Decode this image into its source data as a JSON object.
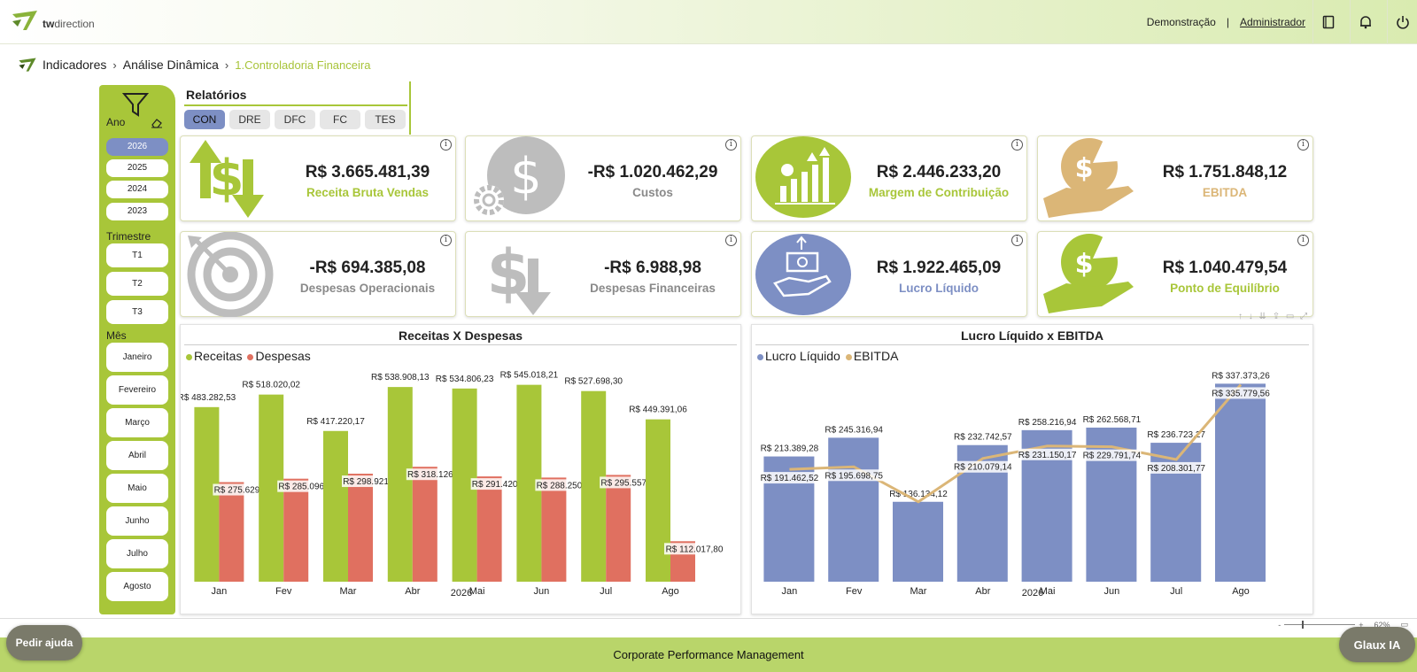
{
  "brand": {
    "logo_text_bold": "tw",
    "logo_text": "direction"
  },
  "header": {
    "user_mode": "Demonstração",
    "separator": "|",
    "user_role": "Administrador"
  },
  "breadcrumb": {
    "items": [
      "Indicadores",
      "Análise Dinâmica"
    ],
    "current": "1.Controladoria Financeira"
  },
  "filters": {
    "year_label": "Ano",
    "years": [
      "2026",
      "2025",
      "2024",
      "2023"
    ],
    "selected_year": "2026",
    "quarter_label": "Trimestre",
    "quarters": [
      "T1",
      "T2",
      "T3"
    ],
    "month_label": "Mês",
    "months": [
      "Janeiro",
      "Fevereiro",
      "Março",
      "Abril",
      "Maio",
      "Junho",
      "Julho",
      "Agosto"
    ]
  },
  "reports": {
    "title": "Relatórios",
    "tabs": [
      "CON",
      "DRE",
      "DFC",
      "FC",
      "TES"
    ],
    "selected": "CON"
  },
  "kpis": [
    {
      "value": "R$ 3.665.481,39",
      "label": "Receita Bruta Vendas",
      "color": "#a8c639",
      "icon": "dollar-arrows-icon"
    },
    {
      "value": "-R$ 1.020.462,29",
      "label": "Custos",
      "color": "#8a8a8a",
      "icon": "dollar-gear-icon"
    },
    {
      "value": "R$ 2.446.233,20",
      "label": "Margem de Contribuição",
      "color": "#a8c639",
      "icon": "growth-chart-icon"
    },
    {
      "value": "R$ 1.751.848,12",
      "label": "EBITDA",
      "color": "#dbb677",
      "icon": "hand-pie-icon"
    },
    {
      "value": "-R$ 694.385,08",
      "label": "Despesas Operacionais",
      "color": "#8a8a8a",
      "icon": "target-icon"
    },
    {
      "value": "-R$ 6.988,98",
      "label": "Despesas Financeiras",
      "color": "#8a8a8a",
      "icon": "dollar-down-icon"
    },
    {
      "value": "R$ 1.922.465,09",
      "label": "Lucro Líquido",
      "color": "#7d8fc4",
      "icon": "hand-money-icon"
    },
    {
      "value": "R$ 1.040.479,54",
      "label": "Ponto de Equilíbrio",
      "color": "#a8c639",
      "icon": "hand-pie-icon"
    }
  ],
  "chart_data": [
    {
      "type": "bar",
      "title": "Receitas X Despesas",
      "categories": [
        "Jan",
        "Fev",
        "Mar",
        "Abr",
        "Mai",
        "Jun",
        "Jul",
        "Ago"
      ],
      "xlabel": "2026",
      "series": [
        {
          "name": "Receitas",
          "color": "#a8c639",
          "values": [
            483282.53,
            518020.02,
            417220.17,
            538908.13,
            534806.23,
            545018.21,
            527698.3,
            449391.06
          ],
          "labels": [
            "R$ 483.282,53",
            "R$ 518.020,02",
            "R$ 417.220,17",
            "R$ 538.908,13",
            "R$ 534.806,23",
            "R$ 545.018,21",
            "R$ 527.698,30",
            "R$ 449.391,06"
          ]
        },
        {
          "name": "Despesas",
          "color": "#e07060",
          "values": [
            275629.46,
            285096.79,
            298921.49,
            318126.48,
            291420.69,
            288250.63,
            295557.34,
            112017.8
          ],
          "labels": [
            "R$ 275.629,46",
            "R$ 285.096,79",
            "R$ 298.921,49",
            "R$ 318.126,48",
            "R$ 291.420,69",
            "R$ 288.250,63",
            "R$ 295.557,34",
            "R$ 112.017,80"
          ]
        }
      ],
      "ylim": [
        0,
        600000
      ]
    },
    {
      "type": "bar",
      "title": "Lucro Líquido x EBITDA",
      "categories": [
        "Jan",
        "Fev",
        "Mar",
        "Abr",
        "Mai",
        "Jun",
        "Jul",
        "Ago"
      ],
      "xlabel": "2026",
      "series": [
        {
          "name": "Lucro Líquido",
          "type": "bar",
          "color": "#7d8fc4",
          "values": [
            213389.28,
            245316.94,
            136134.12,
            232742.57,
            258216.94,
            262568.71,
            236723.27,
            337373.26
          ],
          "labels": [
            "R$ 213.389,28",
            "R$ 245.316,94",
            "R$ 136.134,12",
            "R$ 232.742,57",
            "R$ 258.216,94",
            "R$ 262.568,71",
            "R$ 236.723,27",
            "R$ 337.373,26"
          ]
        },
        {
          "name": "EBITDA",
          "type": "line",
          "color": "#dbb677",
          "values": [
            191462.52,
            195698.75,
            136134.12,
            210079.14,
            231150.17,
            229791.74,
            208301.77,
            335779.56
          ],
          "labels": [
            "R$ 191.462,52",
            "R$ 195.698,75",
            "",
            "R$ 210.079,14",
            "R$ 231.150,17",
            "R$ 229.791,74",
            "R$ 208.301,77",
            "R$ 335.779,56"
          ]
        }
      ],
      "ylim": [
        0,
        350000
      ]
    }
  ],
  "toolbar_visual": "↑ ↓ ⇊ ⇪ ▭ ⤢",
  "zoom": {
    "minus": "-",
    "plus": "+",
    "level": "62%"
  },
  "footer": {
    "text": "Corporate Performance Management"
  },
  "help_button": "Pedir ajuda",
  "assistant_button": "Glaux IA"
}
